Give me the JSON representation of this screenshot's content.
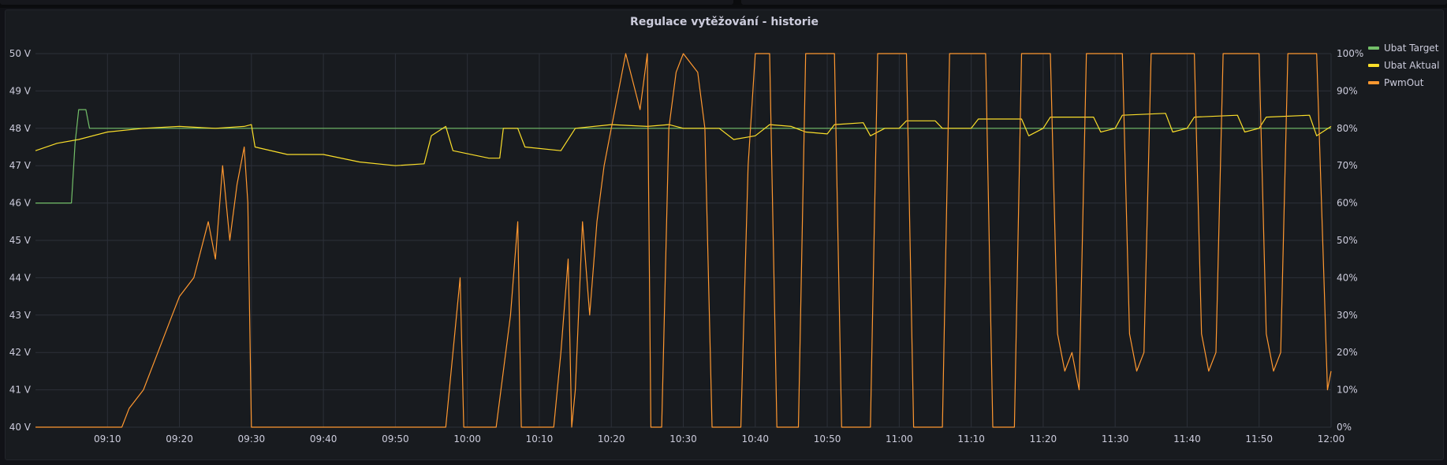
{
  "panel": {
    "title": "Regulace vytěžování - historie"
  },
  "colors": {
    "background": "#111217",
    "panel": "#181b1f",
    "grid": "#2c3039",
    "target": "#73bf69",
    "actual": "#fade2a",
    "pwm": "#ff9830"
  },
  "legend": [
    {
      "name": "Ubat Target",
      "color": "#73bf69"
    },
    {
      "name": "Ubat Aktual",
      "color": "#fade2a"
    },
    {
      "name": "PwmOut",
      "color": "#ff9830"
    }
  ],
  "chart_data": {
    "type": "line",
    "title": "Regulace vytěžování - historie",
    "legend_position": "right",
    "grid": true,
    "x_range": [
      "09:00",
      "12:00"
    ],
    "x_ticks": [
      "09:10",
      "09:20",
      "09:30",
      "09:40",
      "09:50",
      "10:00",
      "10:10",
      "10:20",
      "10:30",
      "10:40",
      "10:50",
      "11:00",
      "11:10",
      "11:20",
      "11:30",
      "11:40",
      "11:50",
      "12:00"
    ],
    "y_left": {
      "unit": "V",
      "range": [
        40,
        50
      ],
      "ticks": [
        "40 V",
        "41 V",
        "42 V",
        "43 V",
        "44 V",
        "45 V",
        "46 V",
        "47 V",
        "48 V",
        "49 V",
        "50 V"
      ]
    },
    "y_right": {
      "unit": "%",
      "range": [
        0,
        100
      ],
      "ticks": [
        "0%",
        "10%",
        "20%",
        "30%",
        "40%",
        "50%",
        "60%",
        "70%",
        "80%",
        "90%",
        "100%"
      ]
    },
    "series": [
      {
        "name": "Ubat Target",
        "axis": "left",
        "points": [
          [
            "09:00",
            46.0
          ],
          [
            "09:05",
            46.0
          ],
          [
            "09:05.5",
            47.6
          ],
          [
            "09:06",
            48.5
          ],
          [
            "09:07",
            48.5
          ],
          [
            "09:07.5",
            48.0
          ],
          [
            "12:00",
            48.0
          ]
        ]
      },
      {
        "name": "Ubat Aktual",
        "axis": "left",
        "points": [
          [
            "09:00",
            47.4
          ],
          [
            "09:03",
            47.6
          ],
          [
            "09:06",
            47.7
          ],
          [
            "09:10",
            47.9
          ],
          [
            "09:15",
            48.0
          ],
          [
            "09:20",
            48.05
          ],
          [
            "09:25",
            48.0
          ],
          [
            "09:29",
            48.05
          ],
          [
            "09:30",
            48.1
          ],
          [
            "09:30.5",
            47.5
          ],
          [
            "09:35",
            47.3
          ],
          [
            "09:40",
            47.3
          ],
          [
            "09:45",
            47.1
          ],
          [
            "09:50",
            47.0
          ],
          [
            "09:54",
            47.05
          ],
          [
            "09:55",
            47.8
          ],
          [
            "09:57",
            48.05
          ],
          [
            "09:58",
            47.4
          ],
          [
            "10:03",
            47.2
          ],
          [
            "10:04.5",
            47.2
          ],
          [
            "10:05",
            48.0
          ],
          [
            "10:07",
            48.0
          ],
          [
            "10:08",
            47.5
          ],
          [
            "10:13",
            47.4
          ],
          [
            "10:15",
            48.0
          ],
          [
            "10:20",
            48.1
          ],
          [
            "10:25",
            48.05
          ],
          [
            "10:28",
            48.1
          ],
          [
            "10:30",
            48.0
          ],
          [
            "10:35",
            48.0
          ],
          [
            "10:37",
            47.7
          ],
          [
            "10:40",
            47.8
          ],
          [
            "10:42",
            48.1
          ],
          [
            "10:45",
            48.05
          ],
          [
            "10:47",
            47.9
          ],
          [
            "10:50",
            47.85
          ],
          [
            "10:51",
            48.1
          ],
          [
            "10:55",
            48.15
          ],
          [
            "10:56",
            47.8
          ],
          [
            "10:58",
            48.0
          ],
          [
            "11:00",
            48.0
          ],
          [
            "11:01",
            48.2
          ],
          [
            "11:05",
            48.2
          ],
          [
            "11:06",
            48.0
          ],
          [
            "11:10",
            48.0
          ],
          [
            "11:11",
            48.25
          ],
          [
            "11:17",
            48.25
          ],
          [
            "11:18",
            47.8
          ],
          [
            "11:20",
            48.0
          ],
          [
            "11:21",
            48.3
          ],
          [
            "11:27",
            48.3
          ],
          [
            "11:28",
            47.9
          ],
          [
            "11:30",
            48.0
          ],
          [
            "11:31",
            48.35
          ],
          [
            "11:37",
            48.4
          ],
          [
            "11:38",
            47.9
          ],
          [
            "11:40",
            48.0
          ],
          [
            "11:41",
            48.3
          ],
          [
            "11:47",
            48.35
          ],
          [
            "11:48",
            47.9
          ],
          [
            "11:50",
            48.0
          ],
          [
            "11:51",
            48.3
          ],
          [
            "11:57",
            48.35
          ],
          [
            "11:58",
            47.8
          ],
          [
            "12:00",
            48.05
          ]
        ]
      },
      {
        "name": "PwmOut",
        "axis": "right",
        "points": [
          [
            "09:00",
            0
          ],
          [
            "09:12",
            0
          ],
          [
            "09:13",
            5
          ],
          [
            "09:15",
            10
          ],
          [
            "09:17",
            20
          ],
          [
            "09:19",
            30
          ],
          [
            "09:20",
            35
          ],
          [
            "09:22",
            40
          ],
          [
            "09:24",
            55
          ],
          [
            "09:25",
            45
          ],
          [
            "09:26",
            70
          ],
          [
            "09:27",
            50
          ],
          [
            "09:28",
            65
          ],
          [
            "09:29",
            75
          ],
          [
            "09:29.5",
            60
          ],
          [
            "09:30",
            0
          ],
          [
            "09:57",
            0
          ],
          [
            "09:58",
            20
          ],
          [
            "09:59",
            40
          ],
          [
            "09:59.5",
            0
          ],
          [
            "10:04",
            0
          ],
          [
            "10:05",
            15
          ],
          [
            "10:06",
            30
          ],
          [
            "10:07",
            55
          ],
          [
            "10:07.5",
            0
          ],
          [
            "10:12",
            0
          ],
          [
            "10:13",
            20
          ],
          [
            "10:14",
            45
          ],
          [
            "10:14.5",
            0
          ],
          [
            "10:15",
            10
          ],
          [
            "10:16",
            55
          ],
          [
            "10:17",
            30
          ],
          [
            "10:18",
            55
          ],
          [
            "10:19",
            70
          ],
          [
            "10:20",
            80
          ],
          [
            "10:21",
            90
          ],
          [
            "10:22",
            100
          ],
          [
            "10:24",
            85
          ],
          [
            "10:25",
            100
          ],
          [
            "10:25.5",
            0
          ],
          [
            "10:27",
            0
          ],
          [
            "10:28",
            80
          ],
          [
            "10:29",
            95
          ],
          [
            "10:30",
            100
          ],
          [
            "10:32",
            95
          ],
          [
            "10:33",
            80
          ],
          [
            "10:34",
            0
          ],
          [
            "10:38",
            0
          ],
          [
            "10:39",
            70
          ],
          [
            "10:40",
            100
          ],
          [
            "10:42",
            100
          ],
          [
            "10:43",
            0
          ],
          [
            "10:46",
            0
          ],
          [
            "10:47",
            100
          ],
          [
            "10:51",
            100
          ],
          [
            "10:52",
            0
          ],
          [
            "10:56",
            0
          ],
          [
            "10:57",
            100
          ],
          [
            "11:01",
            100
          ],
          [
            "11:02",
            0
          ],
          [
            "11:06",
            0
          ],
          [
            "11:07",
            100
          ],
          [
            "11:12",
            100
          ],
          [
            "11:13",
            0
          ],
          [
            "11:16",
            0
          ],
          [
            "11:17",
            100
          ],
          [
            "11:21",
            100
          ],
          [
            "11:22",
            25
          ],
          [
            "11:23",
            15
          ],
          [
            "11:24",
            20
          ],
          [
            "11:25",
            10
          ],
          [
            "11:26",
            100
          ],
          [
            "11:31",
            100
          ],
          [
            "11:32",
            25
          ],
          [
            "11:33",
            15
          ],
          [
            "11:34",
            20
          ],
          [
            "11:35",
            100
          ],
          [
            "11:41",
            100
          ],
          [
            "11:42",
            25
          ],
          [
            "11:43",
            15
          ],
          [
            "11:44",
            20
          ],
          [
            "11:45",
            100
          ],
          [
            "11:50",
            100
          ],
          [
            "11:51",
            25
          ],
          [
            "11:52",
            15
          ],
          [
            "11:53",
            20
          ],
          [
            "11:54",
            100
          ],
          [
            "11:58",
            100
          ],
          [
            "11:59",
            40
          ],
          [
            "11:59.5",
            10
          ],
          [
            "12:00",
            15
          ]
        ]
      }
    ]
  }
}
